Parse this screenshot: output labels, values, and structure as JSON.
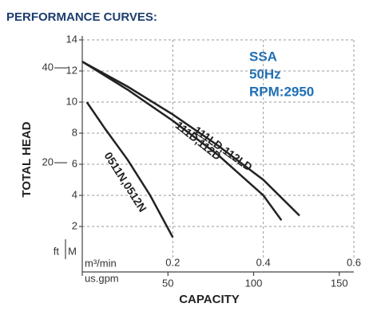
{
  "chart_data": {
    "type": "line",
    "title": "PERFORMANCE CURVES:",
    "annotations": [
      "SSA",
      "50Hz",
      "RPM:2950"
    ],
    "ylabel": "TOTAL HEAD",
    "xlabel": "CAPACITY",
    "y_unit": "M",
    "y2_unit": "ft",
    "x_unit": "m³/min",
    "x2_unit": "us.gpm",
    "xlim": [
      0,
      0.6
    ],
    "xticks": [
      0.2,
      0.4,
      0.6
    ],
    "x2lim": [
      0,
      158.5
    ],
    "x2ticks": [
      50,
      100,
      150
    ],
    "ylim": [
      0,
      14
    ],
    "yticks": [
      2,
      4,
      6,
      8,
      10,
      12,
      14
    ],
    "y2lim": [
      0,
      45.9
    ],
    "y2ticks": [
      20,
      40
    ],
    "grid": true,
    "series": [
      {
        "name": "111LD,112LD",
        "color": "#222222",
        "x": [
          0,
          0.1,
          0.2,
          0.3,
          0.4,
          0.48
        ],
        "values": [
          12.6,
          11.0,
          9.2,
          7.2,
          5.0,
          2.7
        ]
      },
      {
        "name": "111D,112D",
        "color": "#222222",
        "x": [
          0,
          0.1,
          0.2,
          0.3,
          0.4,
          0.44
        ],
        "values": [
          12.6,
          10.8,
          8.8,
          6.6,
          4.0,
          2.4
        ]
      },
      {
        "name": "0511N,0512N",
        "color": "#222222",
        "x": [
          0.01,
          0.05,
          0.1,
          0.15,
          0.2
        ],
        "values": [
          10,
          8.3,
          6.3,
          4.0,
          1.3
        ]
      }
    ]
  }
}
